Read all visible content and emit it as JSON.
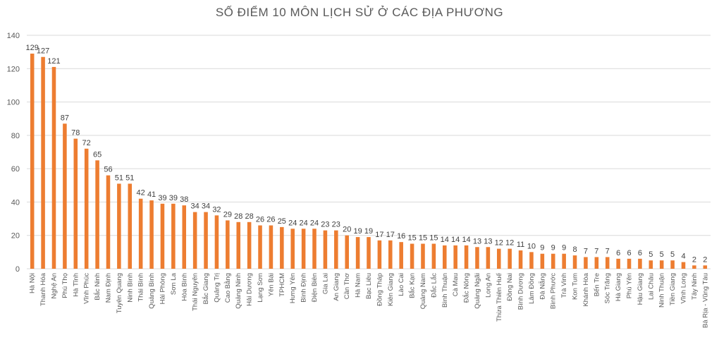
{
  "chart_data": {
    "type": "bar",
    "title": "SỐ ĐIỂM 10 MÔN LỊCH SỬ Ở CÁC ĐỊA PHƯƠNG",
    "xlabel": "",
    "ylabel": "",
    "ylim": [
      0,
      140
    ],
    "yticks": [
      0,
      20,
      40,
      60,
      80,
      100,
      120,
      140
    ],
    "grid": true,
    "bar_color": "#ED7D31",
    "grid_color": "#D9D9D9",
    "categories": [
      "Hà Nội",
      "Thanh Hóa",
      "Nghệ An",
      "Phú Thọ",
      "Hà Tĩnh",
      "Vĩnh Phúc",
      "Bắc Ninh",
      "Nam Định",
      "Tuyên Quang",
      "Ninh Bình",
      "Thái Bình",
      "Quảng Bình",
      "Hải Phòng",
      "Sơn La",
      "Hòa Bình",
      "Thái Nguyên",
      "Bắc Giang",
      "Quảng Trị",
      "Cao Bằng",
      "Quảng Ninh",
      "Hải Dương",
      "Lạng Sơn",
      "Yên Bái",
      "TPHCM",
      "Hưng Yên",
      "Bình Định",
      "Điện Biên",
      "Gia Lai",
      "An Giang",
      "Cần Thơ",
      "Hà Nam",
      "Bạc Liêu",
      "Đồng Tháp",
      "Kiên Giang",
      "Lào Cai",
      "Bắc Kạn",
      "Quảng Nam",
      "Đắc Lắc",
      "Bình Thuận",
      "Cà Mau",
      "Đắc Nông",
      "Quảng Ngãi",
      "Long An",
      "Thừa Thiên Huế",
      "Đồng Nai",
      "Bình Dương",
      "Lâm Đồng",
      "Đà Nẵng",
      "Bình Phước",
      "Trà Vinh",
      "Kon Tum",
      "Khánh Hòa",
      "Bến Tre",
      "Sóc Trăng",
      "Hà Giang",
      "Phú Yên",
      "Hậu Giang",
      "Lai Châu",
      "Ninh Thuận",
      "Tiền Giang",
      "Vĩnh Long",
      "Tây Ninh",
      "Bà Rịa - Vũng Tàu"
    ],
    "values": [
      129,
      127,
      121,
      87,
      78,
      72,
      65,
      56,
      51,
      51,
      42,
      41,
      39,
      39,
      38,
      34,
      34,
      32,
      29,
      28,
      28,
      26,
      26,
      25,
      24,
      24,
      24,
      23,
      23,
      20,
      19,
      19,
      17,
      17,
      16,
      15,
      15,
      15,
      14,
      14,
      14,
      13,
      13,
      12,
      12,
      11,
      10,
      9,
      9,
      9,
      8,
      7,
      7,
      7,
      6,
      6,
      6,
      5,
      5,
      5,
      4,
      2,
      2
    ]
  }
}
